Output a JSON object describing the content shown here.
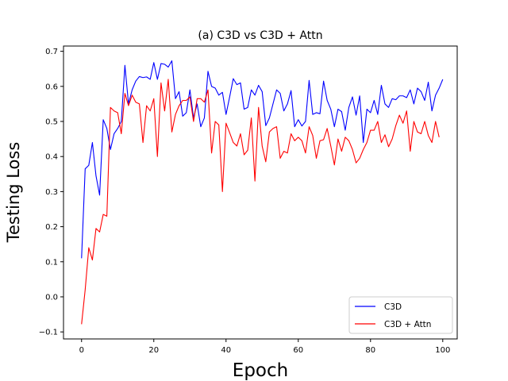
{
  "chart_data": {
    "type": "line",
    "title": "(a) C3D vs C3D + Attn",
    "xlabel": "Epoch",
    "ylabel": "Testing Loss",
    "xlim": [
      -5,
      104
    ],
    "ylim": [
      -0.12,
      0.715
    ],
    "xticks": [
      0,
      20,
      40,
      60,
      80,
      100
    ],
    "xtick_labels": [
      "0",
      "20",
      "40",
      "60",
      "80",
      "100"
    ],
    "yticks": [
      -0.1,
      0.0,
      0.1,
      0.2,
      0.3,
      0.4,
      0.5,
      0.6,
      0.7
    ],
    "ytick_labels": [
      "−0.1",
      "0.0",
      "0.1",
      "0.2",
      "0.3",
      "0.4",
      "0.5",
      "0.6",
      "0.7"
    ],
    "grid": false,
    "legend_position": "lower-right",
    "series": [
      {
        "name": "C3D",
        "color": "#0000ff",
        "values": [
          0.11,
          0.365,
          0.375,
          0.44,
          0.345,
          0.29,
          0.505,
          0.48,
          0.42,
          0.465,
          0.48,
          0.5,
          0.66,
          0.55,
          0.59,
          0.615,
          0.628,
          0.625,
          0.627,
          0.62,
          0.668,
          0.62,
          0.665,
          0.663,
          0.655,
          0.673,
          0.565,
          0.585,
          0.515,
          0.525,
          0.59,
          0.51,
          0.55,
          0.485,
          0.51,
          0.643,
          0.6,
          0.595,
          0.575,
          0.583,
          0.52,
          0.57,
          0.622,
          0.605,
          0.61,
          0.535,
          0.54,
          0.59,
          0.575,
          0.603,
          0.585,
          0.488,
          0.51,
          0.55,
          0.59,
          0.58,
          0.53,
          0.55,
          0.588,
          0.485,
          0.505,
          0.487,
          0.5,
          0.617,
          0.52,
          0.525,
          0.522,
          0.615,
          0.56,
          0.535,
          0.485,
          0.535,
          0.528,
          0.475,
          0.54,
          0.57,
          0.518,
          0.573,
          0.44,
          0.535,
          0.525,
          0.56,
          0.52,
          0.603,
          0.55,
          0.54,
          0.565,
          0.562,
          0.573,
          0.573,
          0.568,
          0.59,
          0.55,
          0.595,
          0.585,
          0.56,
          0.612,
          0.53,
          0.575,
          0.595,
          0.62
        ]
      },
      {
        "name": "C3D + Attn",
        "color": "#ff0000",
        "values": [
          -0.078,
          0.02,
          0.14,
          0.105,
          0.195,
          0.185,
          0.235,
          0.23,
          0.54,
          0.53,
          0.525,
          0.465,
          0.58,
          0.545,
          0.575,
          0.555,
          0.55,
          0.44,
          0.545,
          0.53,
          0.565,
          0.4,
          0.61,
          0.53,
          0.62,
          0.47,
          0.52,
          0.545,
          0.56,
          0.56,
          0.57,
          0.5,
          0.565,
          0.565,
          0.555,
          0.59,
          0.41,
          0.5,
          0.49,
          0.3,
          0.495,
          0.468,
          0.44,
          0.43,
          0.465,
          0.405,
          0.418,
          0.51,
          0.33,
          0.54,
          0.43,
          0.385,
          0.47,
          0.48,
          0.485,
          0.395,
          0.415,
          0.41,
          0.465,
          0.445,
          0.455,
          0.445,
          0.41,
          0.485,
          0.46,
          0.395,
          0.445,
          0.448,
          0.48,
          0.43,
          0.376,
          0.45,
          0.415,
          0.455,
          0.445,
          0.42,
          0.382,
          0.395,
          0.42,
          0.44,
          0.475,
          0.475,
          0.5,
          0.44,
          0.462,
          0.428,
          0.45,
          0.488,
          0.518,
          0.495,
          0.53,
          0.415,
          0.5,
          0.47,
          0.465,
          0.5,
          0.46,
          0.44,
          0.5,
          0.455
        ]
      }
    ]
  }
}
